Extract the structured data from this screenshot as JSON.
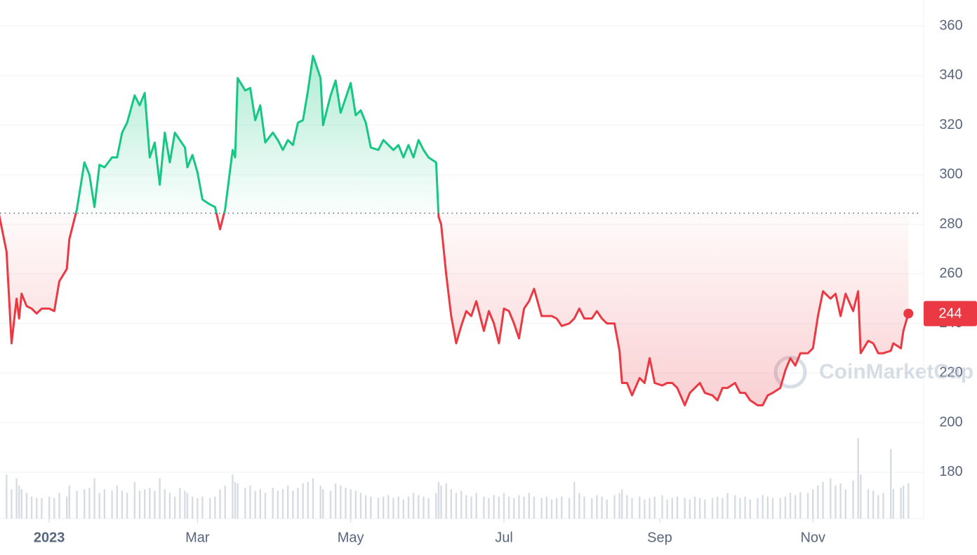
{
  "chart_data": {
    "type": "line",
    "x": [
      -20,
      -17,
      -15,
      -13,
      -12,
      -11,
      -9,
      -7,
      -5,
      -3,
      0,
      2,
      4,
      7,
      8,
      11,
      14,
      16,
      18,
      20,
      22,
      25,
      27,
      29,
      31,
      34,
      36,
      38,
      40,
      42,
      44,
      46,
      48,
      50,
      52,
      54,
      55,
      57,
      59,
      61,
      64,
      66,
      68,
      70,
      73,
      74,
      75,
      78,
      80,
      82,
      84,
      86,
      89,
      91,
      93,
      95,
      97,
      99,
      101,
      103,
      105,
      108,
      109,
      112,
      114,
      116,
      118,
      120,
      122,
      124,
      126,
      128,
      131,
      133,
      135,
      137,
      139,
      141,
      143,
      145,
      147,
      149,
      151,
      154,
      155,
      156,
      158,
      160,
      162,
      164,
      166,
      168,
      170,
      173,
      175,
      177,
      179,
      181,
      183,
      185,
      187,
      189,
      191,
      193,
      196,
      198,
      200,
      202,
      204,
      207,
      209,
      211,
      213,
      216,
      218,
      220,
      222,
      225,
      227,
      228,
      230,
      232,
      235,
      237,
      239,
      241,
      244,
      246,
      248,
      250,
      253,
      255,
      257,
      259,
      261,
      264,
      266,
      268,
      270,
      273,
      275,
      277,
      279,
      282,
      284,
      286,
      288,
      291,
      293,
      295,
      297,
      299,
      302,
      304,
      306,
      308,
      311,
      313,
      315,
      317,
      320,
      322,
      323,
      326,
      328,
      330,
      332,
      335,
      336,
      339,
      340,
      342
    ],
    "series": [
      {
        "name": "price",
        "color_up": "#16c784",
        "color_down": "#ea3943",
        "values": [
          284,
          269,
          232,
          250,
          242,
          252,
          247,
          246,
          244,
          246,
          246,
          245,
          257,
          262,
          274,
          286,
          305,
          300,
          287,
          304,
          303,
          307,
          307,
          317,
          321,
          332,
          328,
          333,
          307,
          313,
          296,
          317,
          305,
          317,
          314,
          311,
          303,
          308,
          301,
          290,
          288,
          287,
          278,
          286,
          310,
          307,
          339,
          334,
          335,
          322,
          328,
          313,
          317,
          314,
          310,
          314,
          312,
          321,
          322,
          334,
          348,
          339,
          320,
          332,
          338,
          325,
          331,
          337,
          324,
          326,
          321,
          311,
          310,
          314,
          312,
          310,
          312,
          307,
          312,
          307,
          314,
          310,
          307,
          305,
          283,
          280,
          260,
          243,
          232,
          239,
          245,
          243,
          249,
          237,
          245,
          240,
          232,
          246,
          245,
          240,
          234,
          246,
          249,
          254,
          243,
          243,
          243,
          242,
          239,
          240,
          242,
          246,
          242,
          242,
          245,
          242,
          240,
          240,
          229,
          216,
          216,
          211,
          218,
          216,
          226,
          216,
          215,
          216,
          216,
          214,
          207,
          212,
          214,
          216,
          212,
          211,
          209,
          214,
          214,
          216,
          212,
          212,
          209,
          207,
          207,
          211,
          212,
          214,
          221,
          226,
          223,
          228,
          228,
          230,
          243,
          253,
          250,
          252,
          243,
          252,
          245,
          253,
          228,
          233,
          232,
          228,
          228,
          229,
          232,
          230,
          237,
          244
        ]
      },
      {
        "name": "volume",
        "color": "#d7dce3",
        "values": [
          85,
          60,
          40,
          55,
          45,
          40,
          35,
          30,
          28,
          28,
          30,
          28,
          35,
          30,
          45,
          38,
          40,
          42,
          55,
          35,
          40,
          38,
          45,
          38,
          35,
          50,
          38,
          40,
          42,
          38,
          55,
          40,
          35,
          30,
          42,
          38,
          35,
          30,
          28,
          30,
          28,
          30,
          40,
          45,
          60,
          50,
          48,
          42,
          45,
          38,
          40,
          35,
          42,
          38,
          40,
          45,
          38,
          42,
          48,
          50,
          55,
          45,
          40,
          38,
          48,
          45,
          42,
          40,
          38,
          35,
          32,
          30,
          28,
          30,
          32,
          28,
          30,
          26,
          30,
          35,
          32,
          30,
          28,
          35,
          50,
          45,
          48,
          40,
          35,
          38,
          32,
          30,
          35,
          30,
          28,
          32,
          30,
          35,
          30,
          28,
          32,
          30,
          35,
          30,
          28,
          30,
          26,
          28,
          30,
          28,
          50,
          35,
          30,
          28,
          32,
          30,
          26,
          32,
          35,
          40,
          32,
          28,
          30,
          26,
          28,
          30,
          32,
          26,
          28,
          30,
          28,
          26,
          30,
          28,
          26,
          28,
          30,
          28,
          35,
          32,
          28,
          30,
          26,
          28,
          32,
          30,
          28,
          28,
          30,
          35,
          32,
          36,
          35,
          40,
          45,
          50,
          55,
          45,
          48,
          40,
          52,
          110,
          60,
          40,
          38,
          32,
          35,
          95,
          40,
          42,
          45,
          48
        ]
      }
    ],
    "reference": 284.5,
    "last_price": 244,
    "watermark": "CoinMarketCap",
    "xlim": [
      -19.6,
      346.4
    ],
    "xticks": [
      {
        "value": 0,
        "label": "2023"
      },
      {
        "value": 59,
        "label": "Mar"
      },
      {
        "value": 120,
        "label": "May"
      },
      {
        "value": 181,
        "label": "Jul"
      },
      {
        "value": 243,
        "label": "Sep"
      },
      {
        "value": 304,
        "label": "Nov"
      }
    ],
    "ylim": [
      161.3,
      370.5
    ],
    "yticks": [
      180,
      200,
      220,
      240,
      260,
      280,
      300,
      320,
      340,
      360
    ],
    "grid": true
  }
}
